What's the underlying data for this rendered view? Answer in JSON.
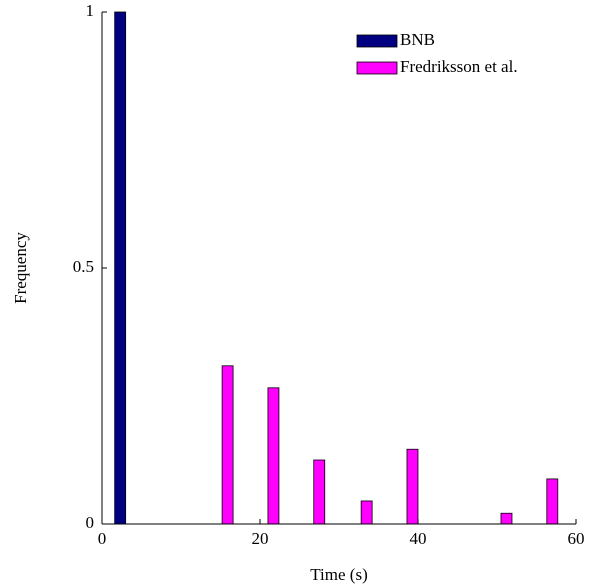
{
  "chart_data": {
    "type": "bar",
    "x_label": "Time (s)",
    "y_label": "Frequency",
    "xlim": [
      0,
      60
    ],
    "ylim": [
      0,
      1
    ],
    "xticks": [
      0,
      20,
      40,
      60
    ],
    "yticks": [
      0,
      0.5,
      1
    ],
    "legend": "top-right",
    "series": [
      {
        "name": "BNB",
        "color": "#000080",
        "x": [
          2.3
        ],
        "values": [
          1
        ]
      },
      {
        "name": "Fredriksson et al.",
        "color": "#ff00ff",
        "x": [
          15.9,
          21.7,
          27.5,
          33.5,
          39.3,
          51.2,
          57.0
        ],
        "values": [
          0.309,
          0.266,
          0.125,
          0.045,
          0.146,
          0.021,
          0.088
        ]
      }
    ]
  }
}
